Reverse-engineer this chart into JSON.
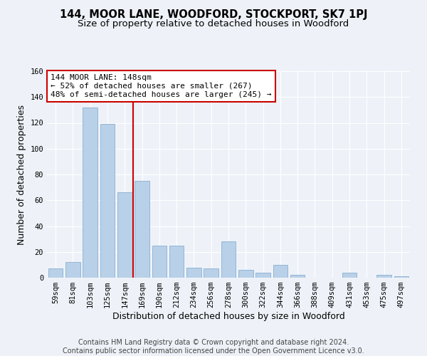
{
  "title": "144, MOOR LANE, WOODFORD, STOCKPORT, SK7 1PJ",
  "subtitle": "Size of property relative to detached houses in Woodford",
  "xlabel": "Distribution of detached houses by size in Woodford",
  "ylabel": "Number of detached properties",
  "categories": [
    "59sqm",
    "81sqm",
    "103sqm",
    "125sqm",
    "147sqm",
    "169sqm",
    "190sqm",
    "212sqm",
    "234sqm",
    "256sqm",
    "278sqm",
    "300sqm",
    "322sqm",
    "344sqm",
    "366sqm",
    "388sqm",
    "409sqm",
    "431sqm",
    "453sqm",
    "475sqm",
    "497sqm"
  ],
  "values": [
    7,
    12,
    132,
    119,
    66,
    75,
    25,
    25,
    8,
    7,
    28,
    6,
    4,
    10,
    2,
    0,
    0,
    4,
    0,
    2,
    1
  ],
  "bar_color": "#b8d0e8",
  "bar_edgecolor": "#8ab0d0",
  "vline_x_index": 4,
  "vline_color": "#cc0000",
  "annotation_text": "144 MOOR LANE: 148sqm\n← 52% of detached houses are smaller (267)\n48% of semi-detached houses are larger (245) →",
  "annotation_box_color": "#ffffff",
  "annotation_box_edgecolor": "#cc0000",
  "ylim": [
    0,
    160
  ],
  "yticks": [
    0,
    20,
    40,
    60,
    80,
    100,
    120,
    140,
    160
  ],
  "footer_line1": "Contains HM Land Registry data © Crown copyright and database right 2024.",
  "footer_line2": "Contains public sector information licensed under the Open Government Licence v3.0.",
  "bg_color": "#eef2f8",
  "plot_bg_color": "#eef2f8",
  "title_fontsize": 10.5,
  "subtitle_fontsize": 9.5,
  "axis_label_fontsize": 9,
  "tick_fontsize": 7.5,
  "footer_fontsize": 7,
  "annotation_fontsize": 8
}
